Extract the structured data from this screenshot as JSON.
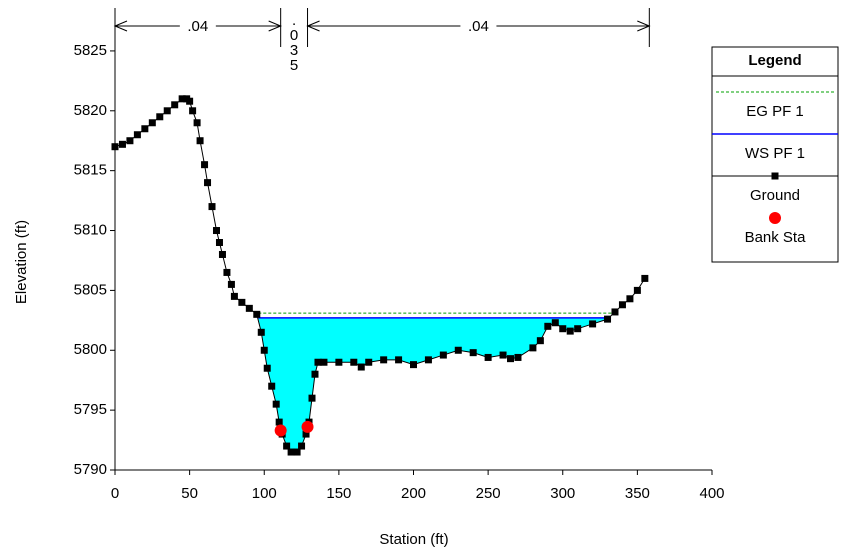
{
  "chart_data": {
    "type": "cross-section",
    "xlabel": "Station (ft)",
    "ylabel": "Elevation (ft)",
    "xlim": [
      0,
      400
    ],
    "ylim": [
      5790,
      5828
    ],
    "xticks": [
      0,
      50,
      100,
      150,
      200,
      250,
      300,
      350,
      400
    ],
    "yticks": [
      5790,
      5795,
      5800,
      5805,
      5810,
      5815,
      5820,
      5825
    ],
    "legend_title": "Legend",
    "mannings_n": {
      "boundaries": [
        0,
        111,
        129,
        358
      ],
      "labels": [
        ".04",
        ".035",
        ".04"
      ]
    },
    "series": [
      {
        "name": "EG PF 1",
        "color": "#00a000",
        "style": "dashed",
        "x": [
          96,
          333
        ],
        "values": [
          5803.1,
          5803.1
        ]
      },
      {
        "name": "WS PF 1",
        "color": "#0000ff",
        "style": "solid",
        "x": [
          96,
          330
        ],
        "values": [
          5802.7,
          5802.7
        ],
        "fill": "#00ffff"
      },
      {
        "name": "Ground",
        "color": "#000000",
        "style": "solid-square",
        "x": [
          0,
          5,
          10,
          15,
          20,
          25,
          30,
          35,
          40,
          45,
          48,
          50,
          52,
          55,
          57,
          60,
          62,
          65,
          68,
          70,
          72,
          75,
          78,
          80,
          85,
          90,
          95,
          98,
          100,
          102,
          105,
          108,
          110,
          112,
          115,
          118,
          122,
          125,
          128,
          130,
          132,
          134,
          136,
          140,
          150,
          160,
          165,
          170,
          180,
          190,
          200,
          210,
          220,
          230,
          240,
          250,
          260,
          265,
          270,
          280,
          285,
          290,
          295,
          300,
          305,
          310,
          320,
          330,
          335,
          340,
          345,
          350,
          355
        ],
        "values": [
          5817,
          5817.2,
          5817.5,
          5818,
          5818.5,
          5819,
          5819.5,
          5820,
          5820.5,
          5821,
          5821,
          5820.8,
          5820,
          5819,
          5817.5,
          5815.5,
          5814,
          5812,
          5810,
          5809,
          5808,
          5806.5,
          5805.5,
          5804.5,
          5804,
          5803.5,
          5803,
          5801.5,
          5800,
          5798.5,
          5797,
          5795.5,
          5794,
          5793,
          5792,
          5791.5,
          5791.5,
          5792,
          5793,
          5794,
          5796,
          5798,
          5799,
          5799,
          5799,
          5799,
          5798.6,
          5799,
          5799.2,
          5799.2,
          5798.8,
          5799.2,
          5799.6,
          5800,
          5799.8,
          5799.4,
          5799.6,
          5799.3,
          5799.4,
          5800.2,
          5800.8,
          5802,
          5802.3,
          5801.8,
          5801.6,
          5801.8,
          5802.2,
          5802.6,
          5803.2,
          5803.8,
          5804.3,
          5805,
          5806
        ]
      },
      {
        "name": "Bank Sta",
        "color": "#ff0000",
        "style": "circle",
        "x": [
          111,
          129
        ],
        "values": [
          5793.3,
          5793.6
        ]
      }
    ]
  }
}
